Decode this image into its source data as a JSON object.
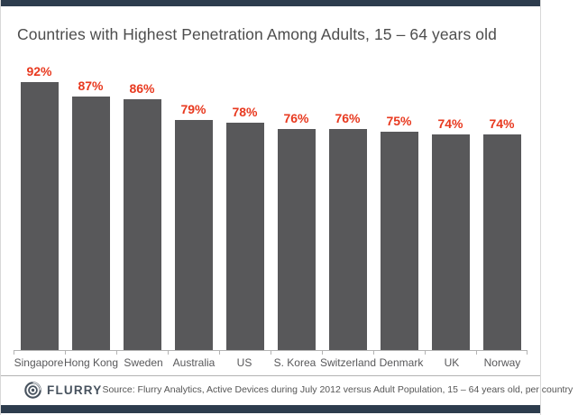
{
  "theme": {
    "frame_bar_color": "#2d3c4d",
    "bar_color": "#58585a",
    "value_label_color": "#e8391f",
    "axis_color": "#b3b3b3",
    "title_color": "#4d4d4d",
    "logo_color": "#47525e"
  },
  "chart_data": {
    "type": "bar",
    "title": "Countries with Highest Penetration Among Adults, 15 – 64 years old",
    "categories": [
      "Singapore",
      "Hong Kong",
      "Sweden",
      "Australia",
      "US",
      "S. Korea",
      "Switzerland",
      "Denmark",
      "UK",
      "Norway"
    ],
    "values": [
      92,
      87,
      86,
      79,
      78,
      76,
      76,
      75,
      74,
      74
    ],
    "value_labels": [
      "92%",
      "87%",
      "86%",
      "79%",
      "78%",
      "76%",
      "76%",
      "75%",
      "74%",
      "74%"
    ],
    "xlabel": "",
    "ylabel": "",
    "ylim": [
      0,
      100
    ],
    "grid": false,
    "legend": false,
    "value_labels_position": "above-bars"
  },
  "footer": {
    "logo_text": "FLURRY",
    "source_text": "Source: Flurry Analytics, Active Devices during July 2012 versus Adult Population, 15 – 64 years old, per country"
  }
}
